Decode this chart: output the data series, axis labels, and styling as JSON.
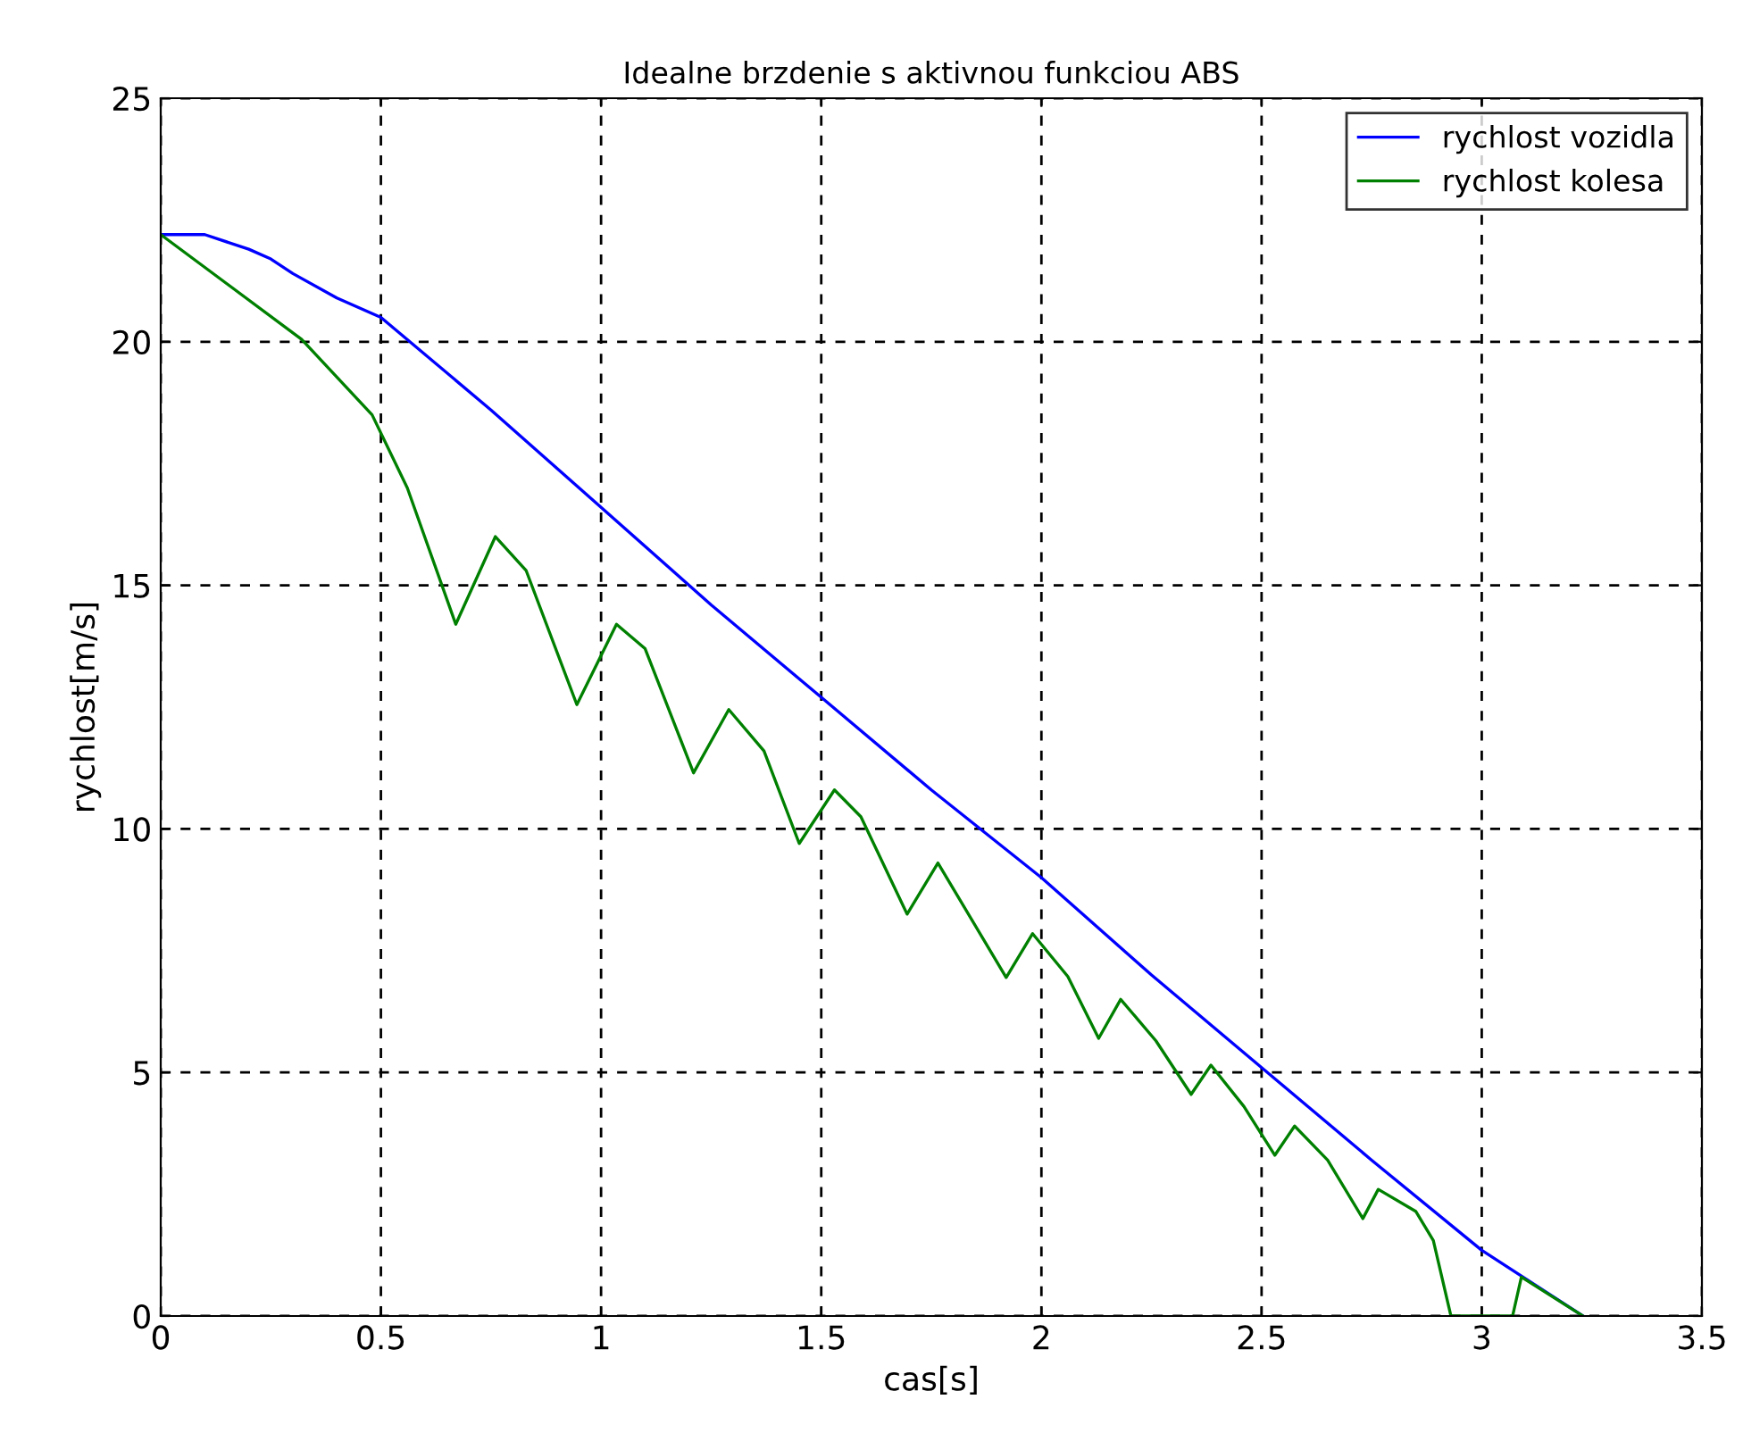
{
  "chart_data": {
    "type": "line",
    "title": "Idealne brzdenie s aktivnou funkciou ABS",
    "xlabel": "cas[s]",
    "ylabel": "rychlost[m/s]",
    "xlim": [
      0,
      3.5
    ],
    "ylim": [
      0,
      25
    ],
    "xticks": [
      0,
      0.5,
      1,
      1.5,
      2,
      2.5,
      3,
      3.5
    ],
    "yticks": [
      0,
      5,
      10,
      15,
      20,
      25
    ],
    "grid": true,
    "legend": "top right",
    "line_style": "solid",
    "marker": "none",
    "series": [
      {
        "name": "rychlost vozidla",
        "color": "#0000ff",
        "x": [
          0,
          0.1,
          0.2,
          0.25,
          0.3,
          0.4,
          0.5,
          0.75,
          1.0,
          1.25,
          1.5,
          1.75,
          2.0,
          2.25,
          2.5,
          2.75,
          3.0,
          3.23
        ],
        "values": [
          22.2,
          22.2,
          21.9,
          21.7,
          21.4,
          20.9,
          20.5,
          18.6,
          16.6,
          14.6,
          12.7,
          10.8,
          9.0,
          7.0,
          5.1,
          3.2,
          1.35,
          0
        ]
      },
      {
        "name": "rychlost kolesa",
        "color": "#008000",
        "x": [
          0,
          0.32,
          0.48,
          0.56,
          0.67,
          0.76,
          0.83,
          0.945,
          1.035,
          1.1,
          1.21,
          1.29,
          1.37,
          1.45,
          1.53,
          1.59,
          1.695,
          1.765,
          1.92,
          1.98,
          2.06,
          2.13,
          2.18,
          2.26,
          2.34,
          2.385,
          2.46,
          2.53,
          2.575,
          2.65,
          2.73,
          2.765,
          2.85,
          2.89,
          2.93,
          3.07,
          3.09,
          3.23
        ],
        "values": [
          22.2,
          20.05,
          18.5,
          17.0,
          14.2,
          16.0,
          15.3,
          12.55,
          14.2,
          13.7,
          11.15,
          12.45,
          11.6,
          9.7,
          10.8,
          10.25,
          8.25,
          9.3,
          6.95,
          7.85,
          6.97,
          5.7,
          6.5,
          5.65,
          4.55,
          5.15,
          4.3,
          3.3,
          3.9,
          3.2,
          2.0,
          2.6,
          2.15,
          1.55,
          0,
          0,
          0.8,
          0
        ]
      }
    ]
  }
}
